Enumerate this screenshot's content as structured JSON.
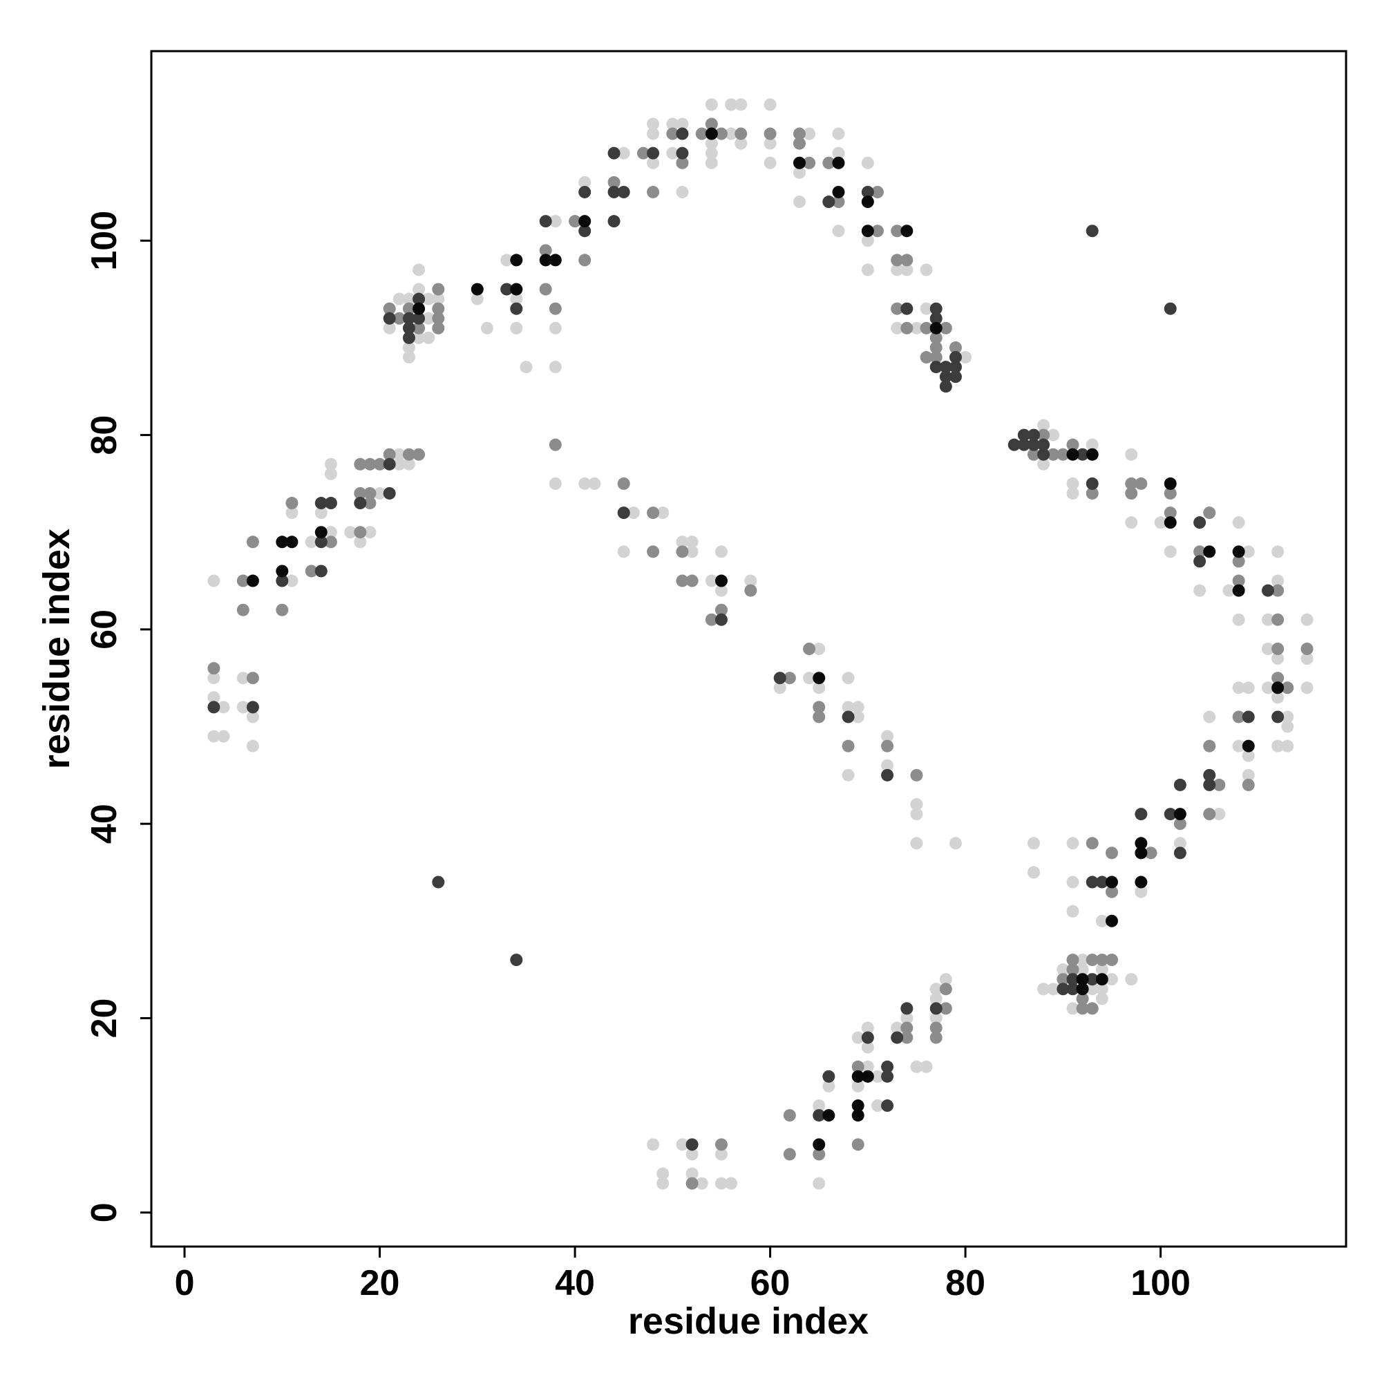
{
  "chart_data": {
    "type": "scatter",
    "xlabel": "residue index",
    "ylabel": "residue index",
    "xlim": [
      -3.4,
      119
    ],
    "ylim": [
      -3.5,
      119.5
    ],
    "xticks": [
      0,
      20,
      40,
      60,
      80,
      100
    ],
    "yticks": [
      0,
      20,
      40,
      60,
      80,
      100
    ],
    "series": [
      {
        "color": "#d3d3d3",
        "x": [
          3,
          3,
          3,
          4,
          3,
          4,
          6,
          6,
          7,
          7,
          11,
          11,
          13,
          14,
          15,
          15,
          15,
          17,
          19,
          18,
          20,
          22,
          22,
          23,
          21,
          22,
          23,
          23,
          23,
          24,
          24,
          24,
          25,
          25,
          25,
          26,
          30,
          31,
          33,
          34,
          34,
          35,
          38,
          38,
          38,
          41,
          45,
          48,
          48,
          48,
          50,
          51,
          50,
          51,
          54,
          54,
          54,
          54,
          56,
          57,
          56,
          57,
          60,
          60,
          60,
          64,
          63,
          63,
          67,
          67,
          67,
          70,
          70,
          70,
          73,
          74,
          76,
          73,
          75,
          76,
          80,
          88,
          88,
          89,
          93,
          91,
          91,
          97,
          97,
          100,
          101,
          104,
          107,
          108,
          109,
          108,
          112,
          112,
          111,
          111,
          112,
          115,
          115,
          115,
          111,
          112,
          113,
          113,
          112,
          113,
          108,
          109,
          108,
          109,
          109,
          105,
          106,
          102,
          98,
          94,
          91,
          91,
          91,
          87,
          87,
          88,
          89,
          90,
          91,
          92,
          92,
          93,
          94,
          94,
          94,
          95,
          97,
          78,
          77,
          77,
          77,
          76,
          75,
          74,
          73,
          71,
          71,
          70,
          70,
          70,
          69,
          69,
          66,
          65,
          65,
          55,
          56,
          55,
          53,
          52,
          52,
          51,
          49,
          49,
          48,
          38,
          41,
          42,
          46,
          49,
          45,
          51,
          52,
          52,
          54,
          55,
          55,
          58,
          61,
          65,
          64,
          65,
          68,
          68,
          69,
          69,
          68,
          72,
          72,
          75,
          75,
          75,
          79
        ],
        "y": [
          65,
          55,
          53,
          52,
          49,
          49,
          55,
          52,
          51,
          48,
          65,
          72,
          69,
          72,
          77,
          76,
          70,
          70,
          70,
          69,
          74,
          78,
          77,
          77,
          91,
          94,
          94,
          89,
          88,
          97,
          95,
          90,
          94,
          92,
          90,
          94,
          94,
          91,
          98,
          94,
          91,
          87,
          91,
          87,
          102,
          106,
          109,
          108,
          112,
          111,
          112,
          112,
          109,
          105,
          114,
          110,
          109,
          108,
          114,
          114,
          111,
          110,
          114,
          110,
          108,
          111,
          107,
          104,
          109,
          111,
          101,
          108,
          100,
          97,
          97,
          97,
          97,
          91,
          91,
          93,
          88,
          81,
          77,
          80,
          79,
          75,
          74,
          78,
          71,
          71,
          68,
          64,
          64,
          71,
          68,
          61,
          65,
          68,
          61,
          58,
          57,
          61,
          57,
          54,
          54,
          53,
          51,
          50,
          48,
          48,
          54,
          54,
          48,
          47,
          45,
          51,
          41,
          38,
          33,
          30,
          38,
          34,
          31,
          38,
          35,
          23,
          23,
          25,
          21,
          26,
          25,
          23,
          23,
          22,
          25,
          24,
          24,
          24,
          23,
          22,
          20,
          15,
          15,
          20,
          19,
          14,
          11,
          19,
          17,
          15,
          18,
          13,
          13,
          11,
          3,
          6,
          3,
          3,
          3,
          4,
          6,
          7,
          4,
          3,
          7,
          75,
          75,
          75,
          72,
          72,
          68,
          69,
          69,
          68,
          65,
          64,
          68,
          65,
          54,
          58,
          55,
          54,
          55,
          52,
          52,
          51,
          45,
          49,
          46,
          42,
          41,
          38,
          38
        ]
      },
      {
        "color": "#8c8c8c",
        "x": [
          3,
          6,
          6,
          7,
          7,
          10,
          11,
          13,
          15,
          18,
          19,
          20,
          18,
          19,
          19,
          18,
          21,
          23,
          24,
          21,
          22,
          23,
          24,
          26,
          26,
          26,
          26,
          37,
          37,
          38,
          40,
          41,
          44,
          47,
          48,
          50,
          51,
          53,
          54,
          55,
          57,
          60,
          63,
          63,
          64,
          66,
          67,
          71,
          71,
          73,
          73,
          74,
          73,
          74,
          77,
          77,
          77,
          78,
          76,
          79,
          76,
          87,
          88,
          89,
          90,
          91,
          93,
          97,
          97,
          98,
          101,
          101,
          104,
          105,
          108,
          108,
          112,
          112,
          112,
          115,
          113,
          112,
          108,
          109,
          105,
          106,
          105,
          102,
          99,
          95,
          95,
          93,
          90,
          91,
          91,
          92,
          92,
          93,
          93,
          94,
          95,
          78,
          78,
          77,
          77,
          74,
          74,
          69,
          69,
          62,
          62,
          65,
          55,
          52,
          38,
          45,
          48,
          48,
          51,
          51,
          52,
          55,
          54,
          58,
          62,
          64,
          65,
          65,
          68,
          72,
          75
        ],
        "y": [
          56,
          65,
          62,
          55,
          69,
          62,
          73,
          66,
          69,
          77,
          77,
          77,
          74,
          74,
          73,
          70,
          78,
          78,
          78,
          93,
          92,
          93,
          91,
          95,
          93,
          92,
          91,
          99,
          95,
          93,
          102,
          98,
          106,
          109,
          105,
          111,
          108,
          111,
          112,
          111,
          111,
          111,
          111,
          110,
          108,
          108,
          104,
          105,
          101,
          101,
          98,
          98,
          93,
          91,
          90,
          89,
          88,
          91,
          88,
          89,
          91,
          78,
          80,
          78,
          78,
          79,
          74,
          75,
          74,
          75,
          74,
          72,
          68,
          72,
          67,
          65,
          64,
          61,
          58,
          58,
          54,
          55,
          51,
          44,
          48,
          44,
          41,
          40,
          37,
          37,
          33,
          38,
          24,
          26,
          25,
          22,
          21,
          26,
          21,
          26,
          26,
          23,
          21,
          19,
          18,
          19,
          18,
          15,
          7,
          10,
          6,
          6,
          7,
          3,
          79,
          75,
          72,
          68,
          68,
          65,
          65,
          62,
          61,
          64,
          55,
          58,
          52,
          51,
          48,
          48,
          45
        ]
      },
      {
        "color": "#3c3c3c",
        "x": [
          3,
          7,
          10,
          14,
          14,
          15,
          14,
          18,
          21,
          21,
          21,
          23,
          23,
          23,
          24,
          24,
          33,
          34,
          37,
          41,
          41,
          44,
          44,
          45,
          44,
          48,
          51,
          51,
          66,
          70,
          77,
          77,
          77,
          78,
          78,
          78,
          79,
          79,
          79,
          85,
          86,
          86,
          87,
          87,
          88,
          88,
          92,
          93,
          104,
          104,
          111,
          112,
          109,
          105,
          105,
          102,
          101,
          102,
          98,
          94,
          93,
          90,
          91,
          91,
          93,
          77,
          74,
          73,
          72,
          72,
          72,
          70,
          66,
          65,
          52,
          45,
          55,
          61,
          68,
          72,
          26,
          34,
          93,
          101,
          74
        ],
        "y": [
          52,
          52,
          65,
          69,
          73,
          73,
          66,
          73,
          74,
          77,
          92,
          92,
          91,
          90,
          94,
          92,
          95,
          93,
          102,
          101,
          105,
          109,
          105,
          105,
          102,
          109,
          111,
          109,
          104,
          105,
          93,
          92,
          87,
          87,
          86,
          85,
          88,
          87,
          86,
          79,
          80,
          79,
          80,
          79,
          79,
          78,
          78,
          75,
          71,
          67,
          64,
          51,
          51,
          45,
          44,
          44,
          41,
          37,
          41,
          34,
          34,
          23,
          24,
          23,
          24,
          21,
          21,
          18,
          15,
          14,
          11,
          18,
          14,
          10,
          7,
          72,
          61,
          55,
          51,
          45,
          34,
          26,
          101,
          93,
          93
        ]
      },
      {
        "color": "#0a0a0a",
        "x": [
          7,
          10,
          11,
          10,
          14,
          24,
          30,
          34,
          34,
          37,
          38,
          41,
          54,
          63,
          67,
          67,
          70,
          70,
          74,
          77,
          91,
          93,
          101,
          101,
          105,
          108,
          108,
          112,
          109,
          102,
          98,
          98,
          98,
          95,
          95,
          92,
          92,
          94,
          69,
          70,
          69,
          69,
          66,
          65,
          55,
          65
        ],
        "y": [
          65,
          69,
          69,
          66,
          70,
          93,
          95,
          98,
          95,
          98,
          98,
          102,
          111,
          108,
          108,
          105,
          104,
          101,
          101,
          91,
          78,
          78,
          75,
          71,
          68,
          68,
          64,
          54,
          48,
          41,
          38,
          37,
          34,
          34,
          30,
          24,
          23,
          24,
          14,
          14,
          11,
          10,
          10,
          7,
          65,
          55
        ]
      }
    ]
  }
}
